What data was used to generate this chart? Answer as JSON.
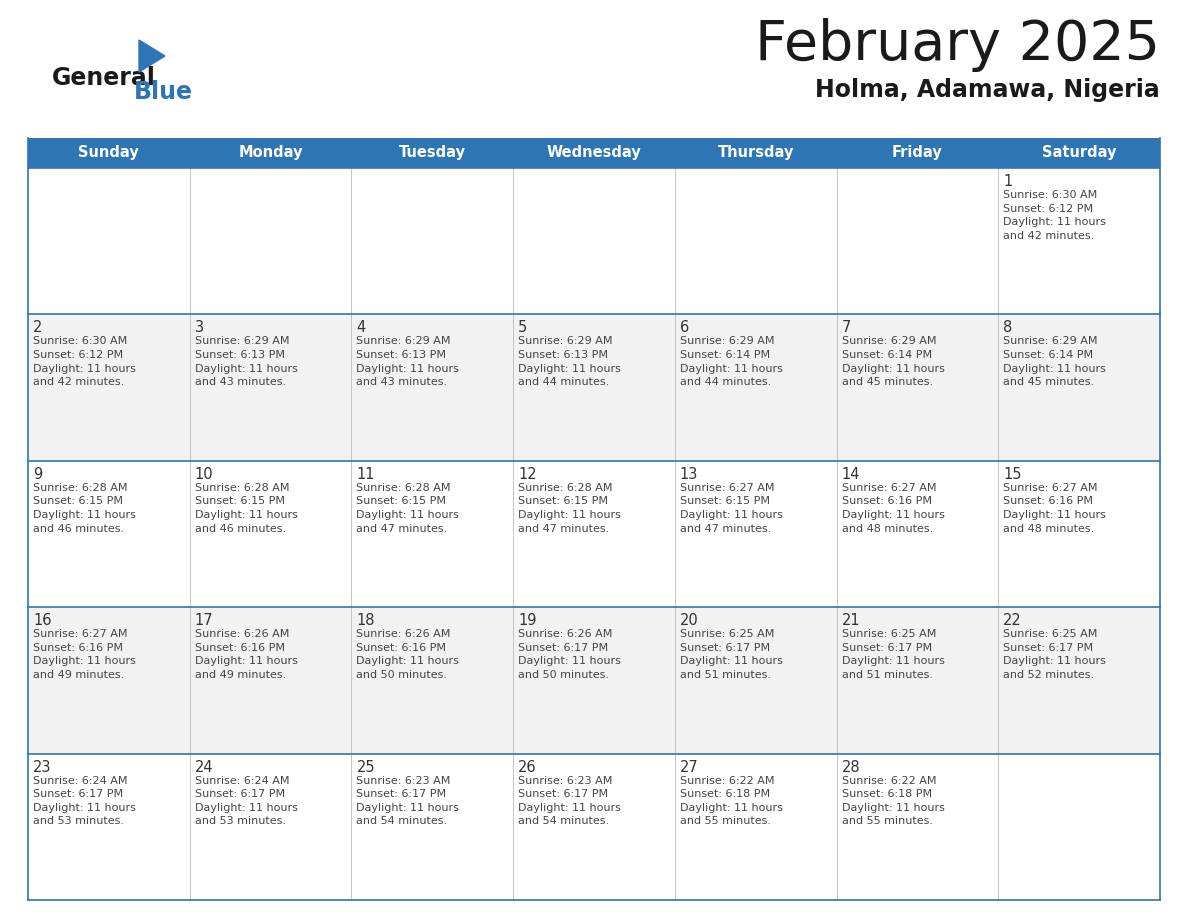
{
  "title": "February 2025",
  "subtitle": "Holma, Adamawa, Nigeria",
  "header_bg": "#2E75B6",
  "header_text": "#FFFFFF",
  "border_color": "#2E75B6",
  "text_color_dark": "#333333",
  "text_color_info": "#444444",
  "cell_bg_even": "#FFFFFF",
  "cell_bg_odd": "#F2F2F2",
  "days_of_week": [
    "Sunday",
    "Monday",
    "Tuesday",
    "Wednesday",
    "Thursday",
    "Friday",
    "Saturday"
  ],
  "calendar": [
    [
      null,
      null,
      null,
      null,
      null,
      null,
      {
        "day": "1",
        "sunrise": "6:30 AM",
        "sunset": "6:12 PM",
        "daylight": "11 hours\nand 42 minutes."
      }
    ],
    [
      {
        "day": "2",
        "sunrise": "6:30 AM",
        "sunset": "6:12 PM",
        "daylight": "11 hours\nand 42 minutes."
      },
      {
        "day": "3",
        "sunrise": "6:29 AM",
        "sunset": "6:13 PM",
        "daylight": "11 hours\nand 43 minutes."
      },
      {
        "day": "4",
        "sunrise": "6:29 AM",
        "sunset": "6:13 PM",
        "daylight": "11 hours\nand 43 minutes."
      },
      {
        "day": "5",
        "sunrise": "6:29 AM",
        "sunset": "6:13 PM",
        "daylight": "11 hours\nand 44 minutes."
      },
      {
        "day": "6",
        "sunrise": "6:29 AM",
        "sunset": "6:14 PM",
        "daylight": "11 hours\nand 44 minutes."
      },
      {
        "day": "7",
        "sunrise": "6:29 AM",
        "sunset": "6:14 PM",
        "daylight": "11 hours\nand 45 minutes."
      },
      {
        "day": "8",
        "sunrise": "6:29 AM",
        "sunset": "6:14 PM",
        "daylight": "11 hours\nand 45 minutes."
      }
    ],
    [
      {
        "day": "9",
        "sunrise": "6:28 AM",
        "sunset": "6:15 PM",
        "daylight": "11 hours\nand 46 minutes."
      },
      {
        "day": "10",
        "sunrise": "6:28 AM",
        "sunset": "6:15 PM",
        "daylight": "11 hours\nand 46 minutes."
      },
      {
        "day": "11",
        "sunrise": "6:28 AM",
        "sunset": "6:15 PM",
        "daylight": "11 hours\nand 47 minutes."
      },
      {
        "day": "12",
        "sunrise": "6:28 AM",
        "sunset": "6:15 PM",
        "daylight": "11 hours\nand 47 minutes."
      },
      {
        "day": "13",
        "sunrise": "6:27 AM",
        "sunset": "6:15 PM",
        "daylight": "11 hours\nand 47 minutes."
      },
      {
        "day": "14",
        "sunrise": "6:27 AM",
        "sunset": "6:16 PM",
        "daylight": "11 hours\nand 48 minutes."
      },
      {
        "day": "15",
        "sunrise": "6:27 AM",
        "sunset": "6:16 PM",
        "daylight": "11 hours\nand 48 minutes."
      }
    ],
    [
      {
        "day": "16",
        "sunrise": "6:27 AM",
        "sunset": "6:16 PM",
        "daylight": "11 hours\nand 49 minutes."
      },
      {
        "day": "17",
        "sunrise": "6:26 AM",
        "sunset": "6:16 PM",
        "daylight": "11 hours\nand 49 minutes."
      },
      {
        "day": "18",
        "sunrise": "6:26 AM",
        "sunset": "6:16 PM",
        "daylight": "11 hours\nand 50 minutes."
      },
      {
        "day": "19",
        "sunrise": "6:26 AM",
        "sunset": "6:17 PM",
        "daylight": "11 hours\nand 50 minutes."
      },
      {
        "day": "20",
        "sunrise": "6:25 AM",
        "sunset": "6:17 PM",
        "daylight": "11 hours\nand 51 minutes."
      },
      {
        "day": "21",
        "sunrise": "6:25 AM",
        "sunset": "6:17 PM",
        "daylight": "11 hours\nand 51 minutes."
      },
      {
        "day": "22",
        "sunrise": "6:25 AM",
        "sunset": "6:17 PM",
        "daylight": "11 hours\nand 52 minutes."
      }
    ],
    [
      {
        "day": "23",
        "sunrise": "6:24 AM",
        "sunset": "6:17 PM",
        "daylight": "11 hours\nand 53 minutes."
      },
      {
        "day": "24",
        "sunrise": "6:24 AM",
        "sunset": "6:17 PM",
        "daylight": "11 hours\nand 53 minutes."
      },
      {
        "day": "25",
        "sunrise": "6:23 AM",
        "sunset": "6:17 PM",
        "daylight": "11 hours\nand 54 minutes."
      },
      {
        "day": "26",
        "sunrise": "6:23 AM",
        "sunset": "6:17 PM",
        "daylight": "11 hours\nand 54 minutes."
      },
      {
        "day": "27",
        "sunrise": "6:22 AM",
        "sunset": "6:18 PM",
        "daylight": "11 hours\nand 55 minutes."
      },
      {
        "day": "28",
        "sunrise": "6:22 AM",
        "sunset": "6:18 PM",
        "daylight": "11 hours\nand 55 minutes."
      },
      null
    ]
  ]
}
